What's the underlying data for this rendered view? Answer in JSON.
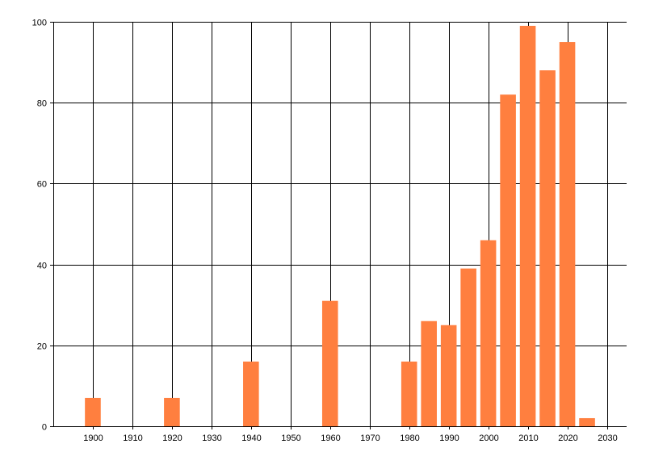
{
  "chart_data": {
    "type": "bar",
    "title": "",
    "xlabel": "",
    "ylabel": "",
    "x": [
      1900,
      1920,
      1940,
      1960,
      1980,
      1985,
      1990,
      1995,
      2000,
      2005,
      2010,
      2015,
      2020,
      2025
    ],
    "values": [
      7,
      7,
      16,
      31,
      16,
      26,
      25,
      39,
      46,
      82,
      99,
      88,
      95,
      2
    ],
    "xlim": [
      1890,
      2035
    ],
    "ylim": [
      0,
      100
    ],
    "x_ticks": [
      1900,
      1910,
      1920,
      1930,
      1940,
      1950,
      1960,
      1970,
      1980,
      1990,
      2000,
      2010,
      2020,
      2030
    ],
    "y_ticks": [
      0,
      20,
      40,
      60,
      80,
      100
    ],
    "grid": true,
    "bar_width_years": 4,
    "colors": {
      "bar": "#ff7f3f",
      "grid": "#000000",
      "axis": "#000000"
    }
  }
}
